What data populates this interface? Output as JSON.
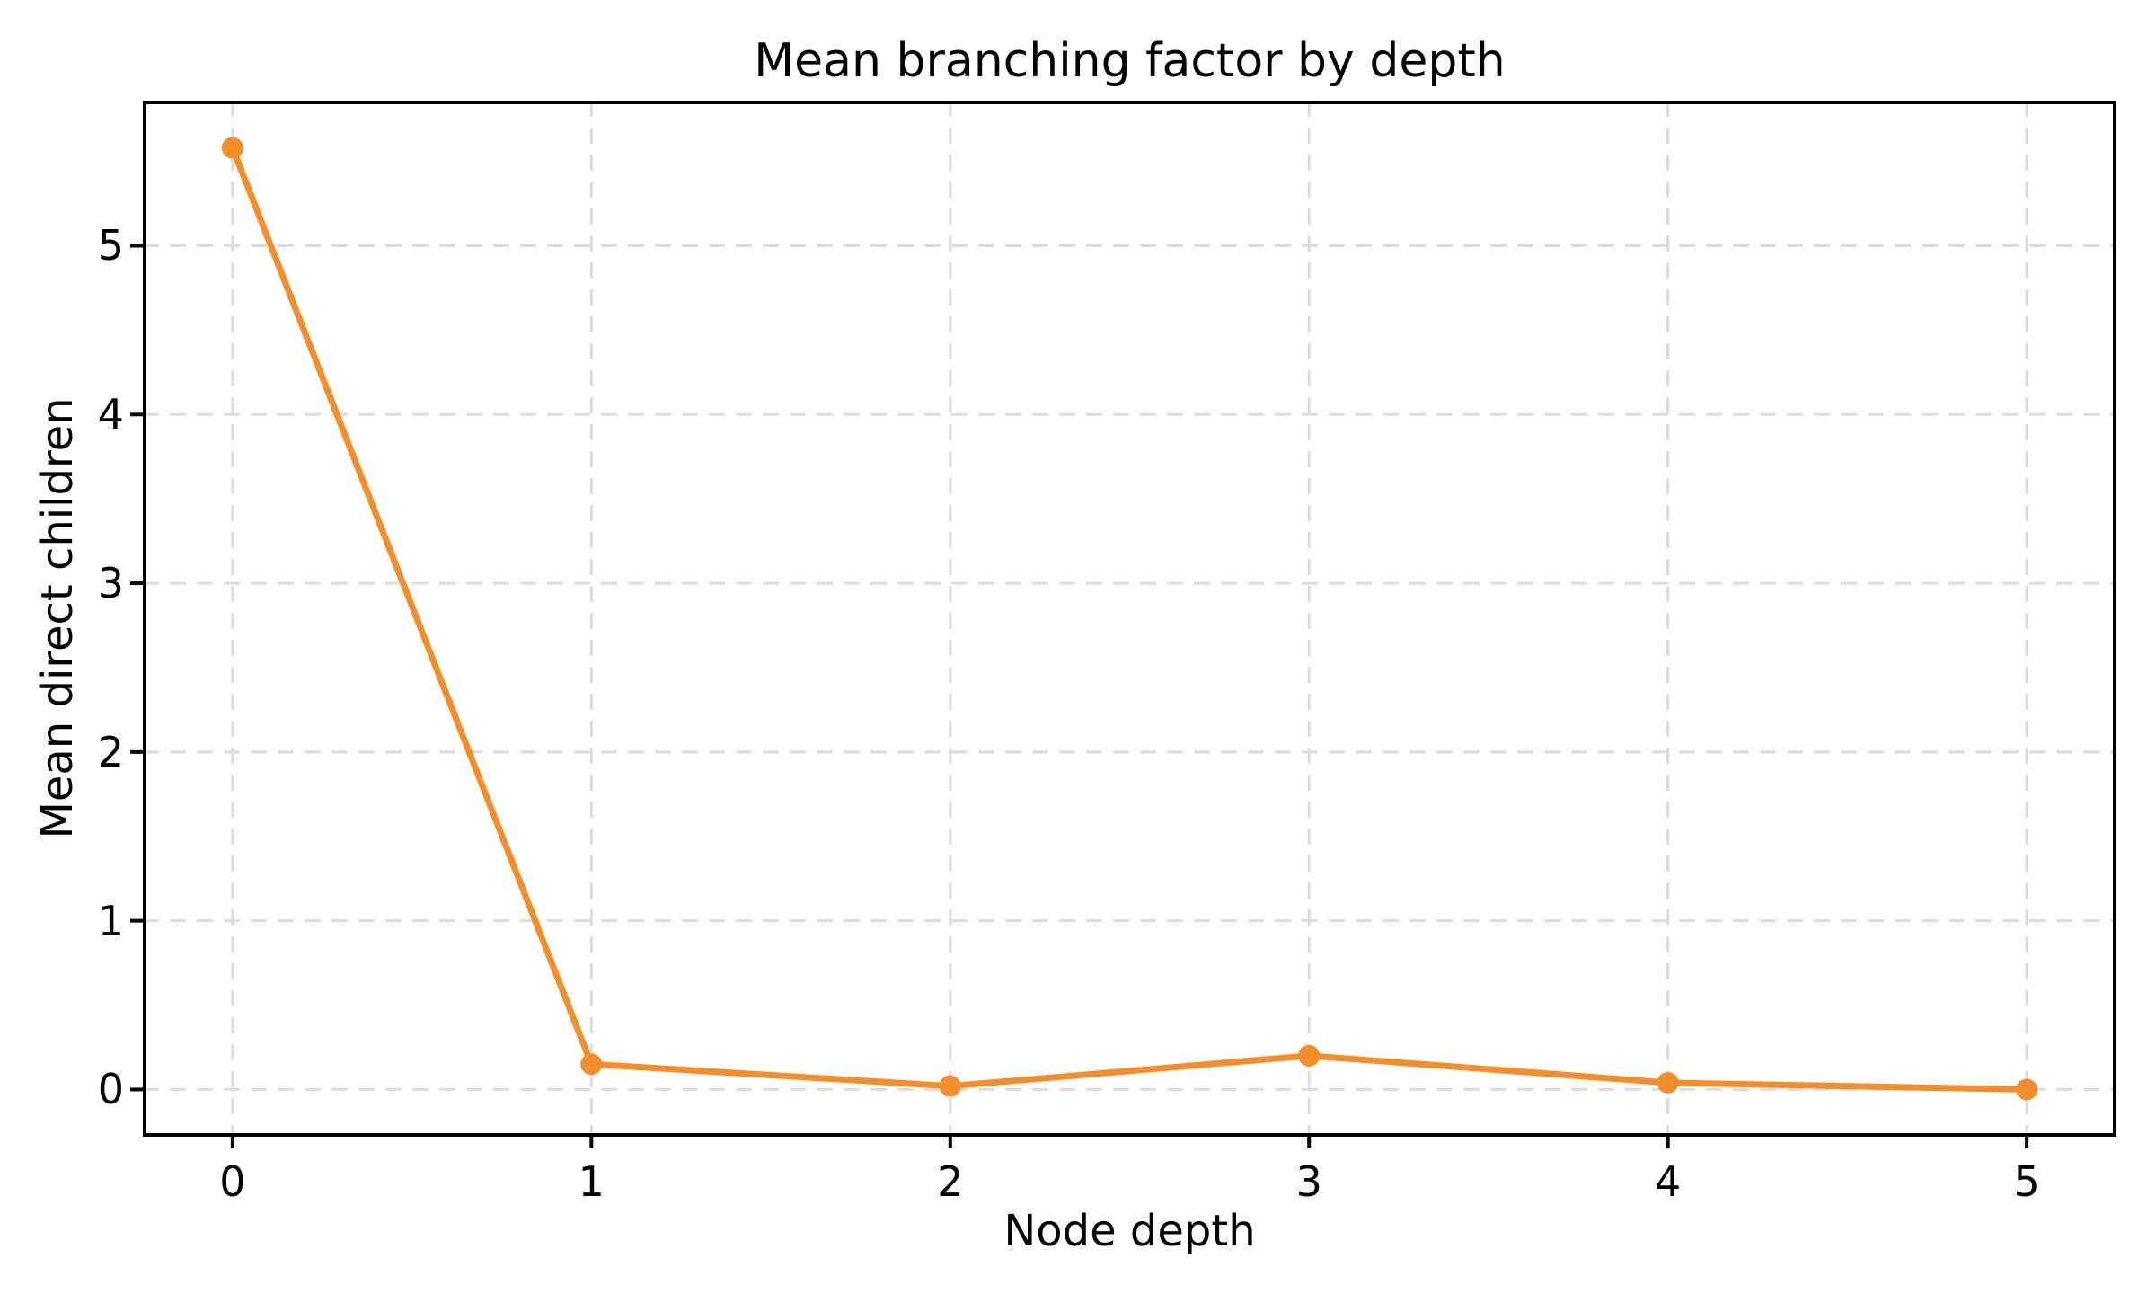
{
  "figure": {
    "background_color": "#ffffff",
    "text_color": "#000000"
  },
  "chart_data": {
    "type": "line",
    "title": "Mean branching factor by depth",
    "xlabel": "Node depth",
    "ylabel": "Mean direct children",
    "x": [
      0,
      1,
      2,
      3,
      4,
      5
    ],
    "values": [
      5.58,
      0.15,
      0.02,
      0.2,
      0.04,
      0.0
    ],
    "xticks": [
      0,
      1,
      2,
      3,
      4,
      5
    ],
    "yticks": [
      0,
      1,
      2,
      3,
      4,
      5
    ],
    "xlim": [
      -0.25,
      5.25
    ],
    "ylim": [
      -0.28,
      5.86
    ],
    "grid": true,
    "grid_linestyle": "dashed",
    "legend_position": "none",
    "line_color": "#F28E2B",
    "marker": "circle",
    "marker_color": "#F28E2B",
    "grid_color": "#DCDCDC",
    "spine_color": "#000000",
    "tick_color": "#000000"
  }
}
